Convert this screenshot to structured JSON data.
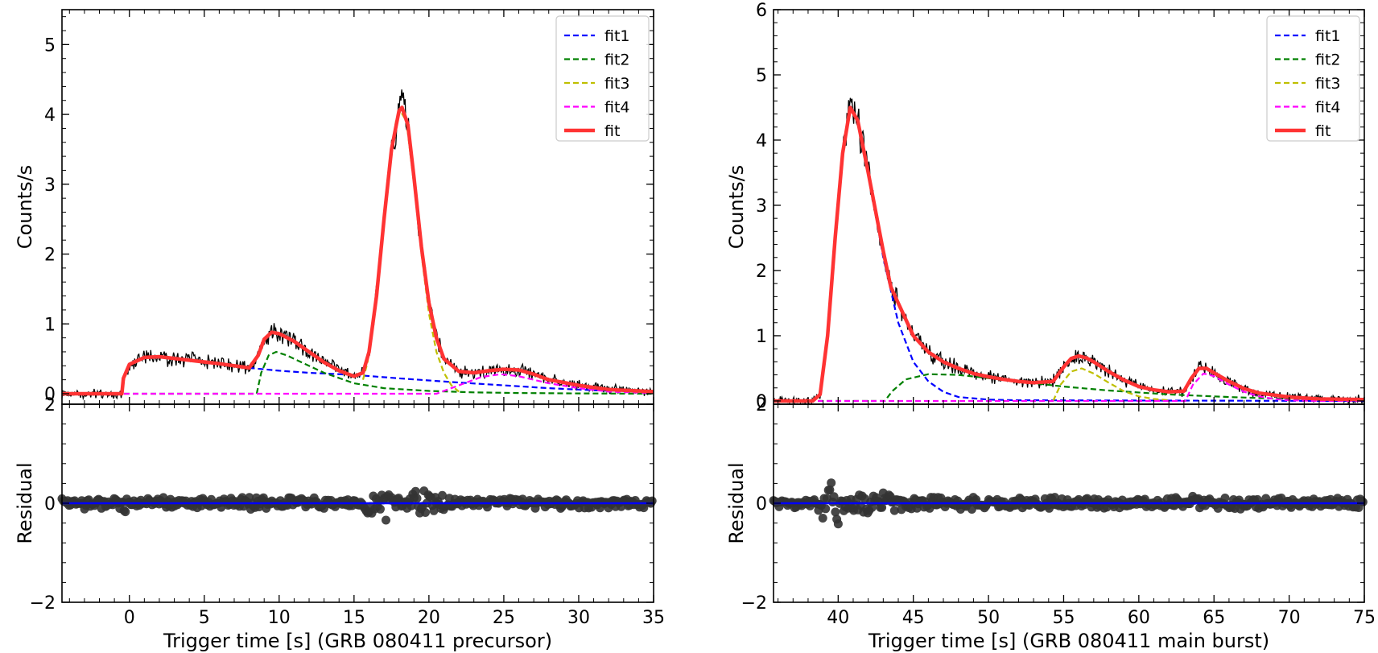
{
  "chart_data": [
    {
      "type": "line",
      "panel": "precursor",
      "xlabel": "Trigger time [s] (GRB 080411 precursor)",
      "ylabel_top": "Counts/s",
      "ylabel_bottom": "Residual",
      "xlim": [
        -4.5,
        35
      ],
      "ylim_top": [
        -0.15,
        5.5
      ],
      "ylim_bottom": [
        -2,
        2
      ],
      "xticks": [
        0,
        5,
        10,
        15,
        20,
        25,
        30,
        35
      ],
      "xtick_labels": [
        "0",
        "5",
        "10",
        "15",
        "20",
        "25",
        "30",
        "35"
      ],
      "yticks_top": [
        0,
        1,
        2,
        3,
        4,
        5
      ],
      "ytick_labels_top": [
        "0",
        "1",
        "2",
        "3",
        "4",
        "5"
      ],
      "yticks_bottom": [
        -2,
        0,
        2
      ],
      "ytick_labels_bottom": [
        "−2",
        "0",
        "2"
      ],
      "legend": {
        "position": "top-right",
        "entries": [
          "fit1",
          "fit2",
          "fit3",
          "fit4",
          "fit"
        ]
      },
      "series": [
        {
          "name": "fit1",
          "color": "#0000ff",
          "style": "dashed",
          "x": [
            -4.5,
            -0.5,
            -0.4,
            0,
            1,
            2,
            4,
            6,
            8,
            10,
            12,
            15,
            18,
            20,
            22,
            25,
            28,
            31,
            35
          ],
          "y": [
            0,
            0,
            0.22,
            0.42,
            0.52,
            0.53,
            0.48,
            0.43,
            0.37,
            0.33,
            0.3,
            0.27,
            0.22,
            0.19,
            0.16,
            0.12,
            0.08,
            0.05,
            0.03
          ]
        },
        {
          "name": "fit2",
          "color": "#008000",
          "style": "dashed",
          "x": [
            -4.5,
            8.5,
            8.8,
            9.3,
            9.8,
            10.5,
            11.5,
            13,
            15,
            17,
            20,
            23,
            26,
            30,
            35
          ],
          "y": [
            0,
            0,
            0.3,
            0.55,
            0.6,
            0.55,
            0.45,
            0.3,
            0.15,
            0.08,
            0.04,
            0.02,
            0.01,
            0.005,
            0
          ],
          "render_from": 8
        },
        {
          "name": "fit3",
          "color": "#bfbf00",
          "style": "dashed",
          "x": [
            15.6,
            15.9,
            16.3,
            16.8,
            17.3,
            17.8,
            18.1,
            18.5,
            19,
            19.5,
            20,
            20.5,
            21,
            21.5,
            22
          ],
          "y": [
            0.2,
            0.45,
            1.1,
            2.1,
            3.2,
            3.9,
            4.05,
            3.9,
            3.0,
            2.0,
            1.15,
            0.6,
            0.3,
            0.12,
            0.03
          ],
          "render_from": 15.6
        },
        {
          "name": "fit4",
          "color": "#ff00ff",
          "style": "dashed",
          "x": [
            -4.5,
            20.5,
            22,
            23.5,
            24.8,
            26,
            28,
            30,
            32,
            35
          ],
          "y": [
            0,
            0,
            0.12,
            0.24,
            0.28,
            0.25,
            0.15,
            0.08,
            0.03,
            0.01
          ],
          "render_from": -4.5
        },
        {
          "name": "fit",
          "color": "#ff3333",
          "style": "solid",
          "x": [
            -4.5,
            -0.5,
            -0.4,
            0,
            1,
            2,
            4,
            6,
            8,
            8.6,
            9,
            9.5,
            10,
            11,
            12,
            13,
            14,
            15,
            15.6,
            16,
            16.5,
            17,
            17.5,
            18,
            18.2,
            18.6,
            19,
            19.5,
            20,
            20.5,
            21,
            22,
            23,
            24,
            25,
            26,
            27,
            28,
            30,
            32,
            35
          ],
          "y": [
            0,
            0,
            0.22,
            0.42,
            0.52,
            0.53,
            0.48,
            0.43,
            0.37,
            0.55,
            0.78,
            0.88,
            0.86,
            0.75,
            0.6,
            0.45,
            0.33,
            0.25,
            0.3,
            0.6,
            1.4,
            2.5,
            3.5,
            4.05,
            4.1,
            3.85,
            3.1,
            2.1,
            1.3,
            0.8,
            0.5,
            0.32,
            0.3,
            0.33,
            0.35,
            0.34,
            0.28,
            0.2,
            0.12,
            0.06,
            0.03
          ]
        }
      ],
      "residual_baseline": 0
    },
    {
      "type": "line",
      "panel": "main burst",
      "xlabel": "Trigger time [s] (GRB 080411 main burst)",
      "ylabel_top": "Counts/s",
      "ylabel_bottom": "Residual",
      "xlim": [
        35.7,
        75
      ],
      "ylim_top": [
        -0.05,
        6
      ],
      "ylim_bottom": [
        -2,
        2
      ],
      "xticks": [
        40,
        45,
        50,
        55,
        60,
        65,
        70,
        75
      ],
      "xtick_labels": [
        "40",
        "45",
        "50",
        "55",
        "60",
        "65",
        "70",
        "75"
      ],
      "yticks_top": [
        0,
        1,
        2,
        3,
        4,
        5,
        6
      ],
      "ytick_labels_top": [
        "0",
        "1",
        "2",
        "3",
        "4",
        "5",
        "6"
      ],
      "yticks_bottom": [
        -2,
        0,
        2
      ],
      "ytick_labels_bottom": [
        "−2",
        "0",
        "2"
      ],
      "legend": {
        "position": "top-right",
        "entries": [
          "fit1",
          "fit2",
          "fit3",
          "fit4",
          "fit"
        ]
      },
      "series": [
        {
          "name": "fit1",
          "color": "#0000ff",
          "style": "dashed",
          "x": [
            35.7,
            38.3,
            38.8,
            39.3,
            39.8,
            40.3,
            40.8,
            41.3,
            42,
            43,
            44,
            45,
            46,
            47,
            48,
            50,
            52,
            75
          ],
          "y": [
            0,
            0,
            0.1,
            1.0,
            2.5,
            3.8,
            4.5,
            4.3,
            3.5,
            2.2,
            1.2,
            0.6,
            0.3,
            0.14,
            0.06,
            0.02,
            0.01,
            0
          ]
        },
        {
          "name": "fit2",
          "color": "#008000",
          "style": "dashed",
          "x": [
            35.7,
            43.1,
            43.6,
            44.5,
            46,
            48,
            50,
            52,
            55,
            58,
            62,
            66,
            70,
            75
          ],
          "y": [
            0,
            0,
            0.15,
            0.33,
            0.41,
            0.4,
            0.35,
            0.3,
            0.22,
            0.16,
            0.1,
            0.06,
            0.03,
            0.02
          ],
          "render_from": 43
        },
        {
          "name": "fit3",
          "color": "#bfbf00",
          "style": "dashed",
          "x": [
            54.3,
            54.8,
            55.5,
            56.2,
            57,
            58,
            59,
            60,
            61,
            62
          ],
          "y": [
            0,
            0.25,
            0.45,
            0.5,
            0.42,
            0.28,
            0.15,
            0.07,
            0.03,
            0.01
          ],
          "render_from": 54.3
        },
        {
          "name": "fit4",
          "color": "#ff00ff",
          "style": "dashed",
          "x": [
            35.7,
            63.1,
            63.6,
            64.3,
            65,
            66,
            67,
            68,
            69,
            70,
            72,
            75
          ],
          "y": [
            0,
            0,
            0.25,
            0.42,
            0.38,
            0.25,
            0.14,
            0.07,
            0.03,
            0.01,
            0,
            0
          ]
        },
        {
          "name": "fit",
          "color": "#ff3333",
          "style": "solid",
          "x": [
            35.7,
            38.3,
            38.8,
            39.3,
            39.8,
            40.3,
            40.8,
            41.3,
            42,
            43,
            43.5,
            44,
            45,
            46,
            47,
            48,
            49,
            50,
            51,
            52,
            53,
            54.3,
            55,
            55.5,
            56,
            56.5,
            57,
            58,
            59,
            60,
            61,
            62,
            63,
            63.5,
            64,
            64.5,
            65,
            66,
            67,
            68,
            70,
            72,
            75
          ],
          "y": [
            0,
            0,
            0.1,
            1.0,
            2.5,
            3.8,
            4.5,
            4.3,
            3.5,
            2.3,
            1.75,
            1.5,
            1.0,
            0.75,
            0.6,
            0.5,
            0.42,
            0.37,
            0.33,
            0.3,
            0.28,
            0.3,
            0.52,
            0.65,
            0.69,
            0.66,
            0.6,
            0.45,
            0.32,
            0.22,
            0.17,
            0.14,
            0.15,
            0.35,
            0.5,
            0.5,
            0.43,
            0.3,
            0.19,
            0.12,
            0.06,
            0.03,
            0.02
          ]
        }
      ],
      "residual_baseline": 0
    }
  ]
}
